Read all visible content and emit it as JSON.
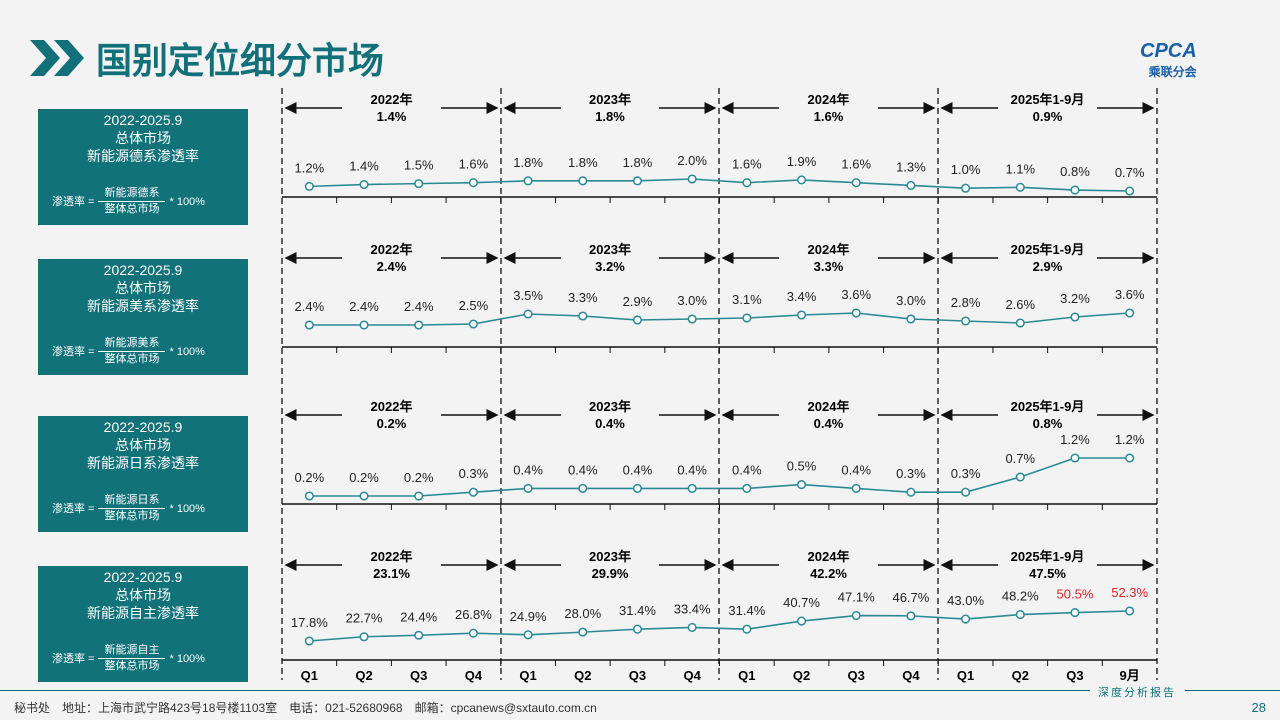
{
  "header": {
    "title": "国别定位细分市场",
    "logo_text": "CPCA",
    "logo_sub": "乘联分会"
  },
  "x_labels": [
    "Q1",
    "Q2",
    "Q3",
    "Q4",
    "Q1",
    "Q2",
    "Q3",
    "Q4",
    "Q1",
    "Q2",
    "Q3",
    "Q4",
    "Q1",
    "Q2",
    "Q3",
    "9月"
  ],
  "colors": {
    "accent": "#11727a",
    "line": "#2a8a94",
    "highlight": "#e0242a"
  },
  "chart_data": [
    {
      "type": "line",
      "box": {
        "period": "2022-2025.9",
        "market": "总体市场",
        "metric": "新能源德系渗透率",
        "lhs": "渗透率 =",
        "numerator": "新能源德系",
        "denominator": "整体总市场",
        "mult": "* 100%"
      },
      "periods": [
        {
          "label": "2022年",
          "value": "1.4%"
        },
        {
          "label": "2023年",
          "value": "1.8%"
        },
        {
          "label": "2024年",
          "value": "1.6%"
        },
        {
          "label": "2025年1-9月",
          "value": "0.9%"
        }
      ],
      "values": [
        1.2,
        1.4,
        1.5,
        1.6,
        1.8,
        1.8,
        1.8,
        2.0,
        1.6,
        1.9,
        1.6,
        1.3,
        1.0,
        1.1,
        0.8,
        0.7
      ],
      "labels": [
        "1.2%",
        "1.4%",
        "1.5%",
        "1.6%",
        "1.8%",
        "1.8%",
        "1.8%",
        "2.0%",
        "1.6%",
        "1.9%",
        "1.6%",
        "1.3%",
        "1.0%",
        "1.1%",
        "0.8%",
        "0.7%"
      ],
      "red": []
    },
    {
      "type": "line",
      "box": {
        "period": "2022-2025.9",
        "market": "总体市场",
        "metric": "新能源美系渗透率",
        "lhs": "渗透率 =",
        "numerator": "新能源美系",
        "denominator": "整体总市场",
        "mult": "* 100%"
      },
      "periods": [
        {
          "label": "2022年",
          "value": "2.4%"
        },
        {
          "label": "2023年",
          "value": "3.2%"
        },
        {
          "label": "2024年",
          "value": "3.3%"
        },
        {
          "label": "2025年1-9月",
          "value": "2.9%"
        }
      ],
      "values": [
        2.4,
        2.4,
        2.4,
        2.5,
        3.5,
        3.3,
        2.9,
        3.0,
        3.1,
        3.4,
        3.6,
        3.0,
        2.8,
        2.6,
        3.2,
        3.6
      ],
      "labels": [
        "2.4%",
        "2.4%",
        "2.4%",
        "2.5%",
        "3.5%",
        "3.3%",
        "2.9%",
        "3.0%",
        "3.1%",
        "3.4%",
        "3.6%",
        "3.0%",
        "2.8%",
        "2.6%",
        "3.2%",
        "3.6%"
      ],
      "red": []
    },
    {
      "type": "line",
      "box": {
        "period": "2022-2025.9",
        "market": "总体市场",
        "metric": "新能源日系渗透率",
        "lhs": "渗透率 =",
        "numerator": "新能源日系",
        "denominator": "整体总市场",
        "mult": "* 100%"
      },
      "periods": [
        {
          "label": "2022年",
          "value": "0.2%"
        },
        {
          "label": "2023年",
          "value": "0.4%"
        },
        {
          "label": "2024年",
          "value": "0.4%"
        },
        {
          "label": "2025年1-9月",
          "value": "0.8%"
        }
      ],
      "values": [
        0.2,
        0.2,
        0.2,
        0.3,
        0.4,
        0.4,
        0.4,
        0.4,
        0.4,
        0.5,
        0.4,
        0.3,
        0.3,
        0.7,
        1.2,
        1.2
      ],
      "labels": [
        "0.2%",
        "0.2%",
        "0.2%",
        "0.3%",
        "0.4%",
        "0.4%",
        "0.4%",
        "0.4%",
        "0.4%",
        "0.5%",
        "0.4%",
        "0.3%",
        "0.3%",
        "0.7%",
        "1.2%",
        "1.2%"
      ],
      "red": []
    },
    {
      "type": "line",
      "box": {
        "period": "2022-2025.9",
        "market": "总体市场",
        "metric": "新能源自主渗透率",
        "lhs": "渗透率 =",
        "numerator": "新能源自主",
        "denominator": "整体总市场",
        "mult": "* 100%"
      },
      "periods": [
        {
          "label": "2022年",
          "value": "23.1%"
        },
        {
          "label": "2023年",
          "value": "29.9%"
        },
        {
          "label": "2024年",
          "value": "42.2%"
        },
        {
          "label": "2025年1-9月",
          "value": "47.5%"
        }
      ],
      "values": [
        17.8,
        22.7,
        24.4,
        26.8,
        24.9,
        28.0,
        31.4,
        33.4,
        31.4,
        40.7,
        47.1,
        46.7,
        43.0,
        48.2,
        50.5,
        52.3
      ],
      "labels": [
        "17.8%",
        "22.7%",
        "24.4%",
        "26.8%",
        "24.9%",
        "28.0%",
        "31.4%",
        "33.4%",
        "31.4%",
        "40.7%",
        "47.1%",
        "46.7%",
        "43.0%",
        "48.2%",
        "50.5%",
        "52.3%"
      ],
      "red": [
        14,
        15
      ]
    }
  ],
  "footer": {
    "text": "秘书处　地址：上海市武宁路423号18号楼1103室　电话：021-52680968　邮箱：cpcanews@sxtauto.com.cn",
    "report": "深度分析报告",
    "page": "28"
  }
}
